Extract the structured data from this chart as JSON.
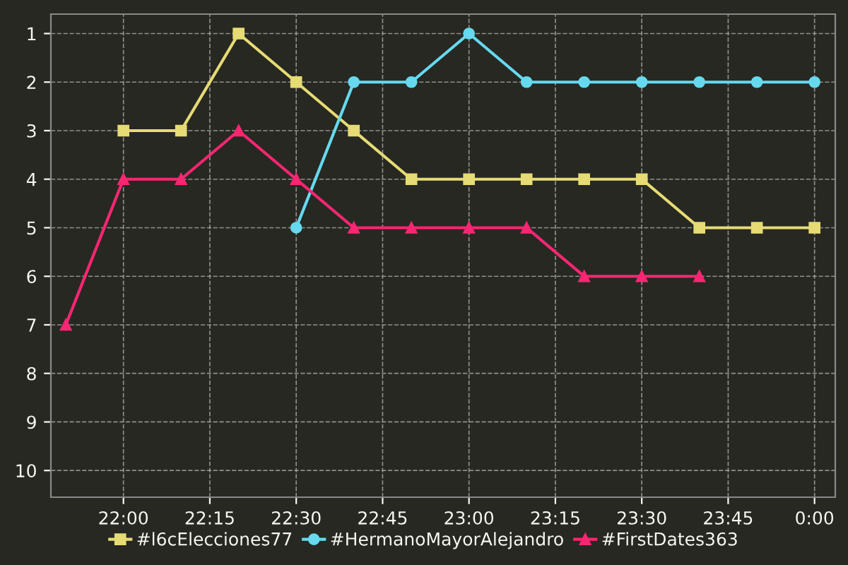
{
  "chart_data": {
    "type": "line",
    "xlim": [
      21.79,
      24.06
    ],
    "xticks": [
      {
        "value": 22,
        "label": "22:00"
      },
      {
        "value": 22.25,
        "label": "22:15"
      },
      {
        "value": 22.5,
        "label": "22:30"
      },
      {
        "value": 22.75,
        "label": "22:45"
      },
      {
        "value": 23,
        "label": "23:00"
      },
      {
        "value": 23.25,
        "label": "23:15"
      },
      {
        "value": 23.5,
        "label": "23:30"
      },
      {
        "value": 23.75,
        "label": "23:45"
      },
      {
        "value": 24,
        "label": "0:00"
      }
    ],
    "ylim": [
      10.55,
      0.6
    ],
    "yticks": [
      1,
      2,
      3,
      4,
      5,
      6,
      7,
      8,
      9,
      10
    ],
    "grid": true,
    "legend": "bottom",
    "line_style": "solid",
    "series": [
      {
        "name": "#l6cElecciones77",
        "color": "#e6db74",
        "marker": "square",
        "x": [
          22.0,
          22.1667,
          22.3333,
          22.5,
          22.6667,
          22.8333,
          23.0,
          23.1667,
          23.3333,
          23.5,
          23.6667,
          23.8333,
          24.0
        ],
        "values": [
          3,
          3,
          1,
          2,
          3,
          4,
          4,
          4,
          4,
          4,
          5,
          5,
          5
        ]
      },
      {
        "name": "#HermanoMayorAlejandro",
        "color": "#66d9ef",
        "marker": "circle",
        "x": [
          22.5,
          22.6667,
          22.8333,
          23.0,
          23.1667,
          23.3333,
          23.5,
          23.6667,
          23.8333,
          24.0
        ],
        "values": [
          5,
          2,
          2,
          1,
          2,
          2,
          2,
          2,
          2,
          2
        ]
      },
      {
        "name": "#FirstDates363",
        "color": "#f92672",
        "marker": "triangle",
        "x": [
          21.8333,
          22.0,
          22.1667,
          22.3333,
          22.5,
          22.6667,
          22.8333,
          23.0,
          23.1667,
          23.3333,
          23.5,
          23.6667
        ],
        "values": [
          7,
          4,
          4,
          3,
          4,
          5,
          5,
          5,
          5,
          6,
          6,
          6
        ]
      }
    ]
  }
}
